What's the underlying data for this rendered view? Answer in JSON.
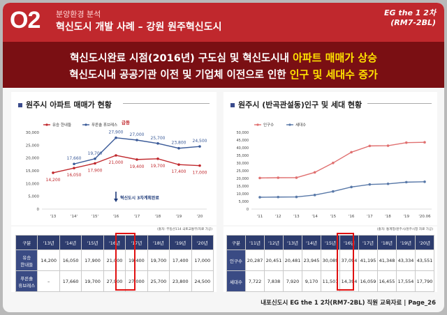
{
  "header": {
    "number": "O2",
    "section": "분양환경 분석",
    "title": "혁신도시 개발 사례 – 강원 원주혁신도시",
    "code_line1": "EG the 1 2차",
    "code_line2": "(RM7-2BL)"
  },
  "headline": {
    "line1_prefix": "혁신도시완료 시점(2016년) 구도심 및 혁신도시내 ",
    "line1_highlight": "아파트 매매가 상승",
    "line2_prefix": "혁신도시내 공공기관 이전 및 기업체 이전으로 인한 ",
    "line2_highlight": "인구 및 세대수 증가"
  },
  "left_panel": {
    "title": "원주시 아파트 매매가 현황",
    "annotation": "혁신도시 3차계획완료",
    "surge_label": "급등",
    "source": "(출처: 부동산114 국토교통부/자료 가공)"
  },
  "right_panel": {
    "title": "원주시 (반곡관설동)인구 및 세대 현황",
    "source": "(출처: 통계청/원주시/원주시청 자료 가공)"
  },
  "chart_data": [
    {
      "type": "line",
      "title": "원주시 아파트 매매가 현황",
      "categories": [
        "'13",
        "'14'",
        "'15'",
        "'16",
        "'17",
        "'18",
        "'19",
        "'20"
      ],
      "ylim": [
        0,
        30000
      ],
      "yticks": [
        "0",
        "5,000",
        "10,000",
        "15,000",
        "20,000",
        "25,000",
        "30,000"
      ],
      "series": [
        {
          "name": "유승 한내들",
          "color": "#c0282d",
          "values": [
            14200,
            16050,
            17900,
            21000,
            19400,
            19700,
            17400,
            17000
          ],
          "labels": [
            "14,200",
            "16,050",
            "17,900",
            "21,000",
            "19,400",
            "19,700",
            "17,400",
            "17,000"
          ]
        },
        {
          "name": "푸른솔 휴브레스",
          "color": "#3a5a98",
          "values": [
            null,
            17660,
            19700,
            27900,
            27000,
            25700,
            23800,
            24500
          ],
          "labels": [
            "",
            "17,660",
            "19,700",
            "27,900",
            "27,000",
            "25,700",
            "23,800",
            "24,500"
          ]
        }
      ]
    },
    {
      "type": "line",
      "title": "원주시 (반곡관설동)인구 및 세대 현황",
      "categories": [
        "'11",
        "'12",
        "'13",
        "'14",
        "'15",
        "'16",
        "'17",
        "'18",
        "'19",
        "'20.06"
      ],
      "ylim": [
        0,
        50000
      ],
      "yticks": [
        "0",
        "5,000",
        "10,000",
        "15,000",
        "20,000",
        "25,000",
        "30,000",
        "35,000",
        "40,000",
        "45,000",
        "50,000"
      ],
      "series": [
        {
          "name": "인구수",
          "color": "#e07070",
          "values": [
            20287,
            20451,
            20481,
            23945,
            30089,
            37094,
            41195,
            41348,
            43334,
            43551
          ]
        },
        {
          "name": "세대수",
          "color": "#5878a8",
          "values": [
            7722,
            7838,
            7920,
            9170,
            11501,
            14394,
            16059,
            16455,
            17554,
            17790
          ]
        }
      ]
    }
  ],
  "left_table": {
    "headers": [
      "구분",
      "'13년",
      "'14년",
      "'15년",
      "'16년",
      "'17년",
      "'18년",
      "'19년",
      "'20년"
    ],
    "rows": [
      {
        "label_a": "유승",
        "label_b": "한내들",
        "cells": [
          "14,200",
          "16,050",
          "17,900",
          "21,000",
          "19,400",
          "19,700",
          "17,400",
          "17,000"
        ]
      },
      {
        "label_a": "푸른솔",
        "label_b": "휴브레스",
        "cells": [
          "–",
          "17,660",
          "19,700",
          "27,900",
          "27,000",
          "25,700",
          "23,800",
          "24,500"
        ]
      }
    ]
  },
  "right_table": {
    "headers": [
      "구분",
      "'11년",
      "'12년",
      "'13년",
      "'14년",
      "'15년",
      "'16년",
      "'17년",
      "'18년",
      "'19년",
      "'20년"
    ],
    "rows": [
      {
        "label": "인구수",
        "cells": [
          "20,287",
          "20,451",
          "20,481",
          "23,945",
          "30,089",
          "37,094",
          "41,195",
          "41,348",
          "43,334",
          "43,551"
        ]
      },
      {
        "label": "세대수",
        "cells": [
          "7,722",
          "7,838",
          "7,920",
          "9,170",
          "11,501",
          "14,394",
          "16,059",
          "16,455",
          "17,554",
          "17,790"
        ]
      }
    ]
  },
  "footer": "내포신도시 EG the 1 2차(RM7-2BL)  직원 교육자료 | Page_26"
}
